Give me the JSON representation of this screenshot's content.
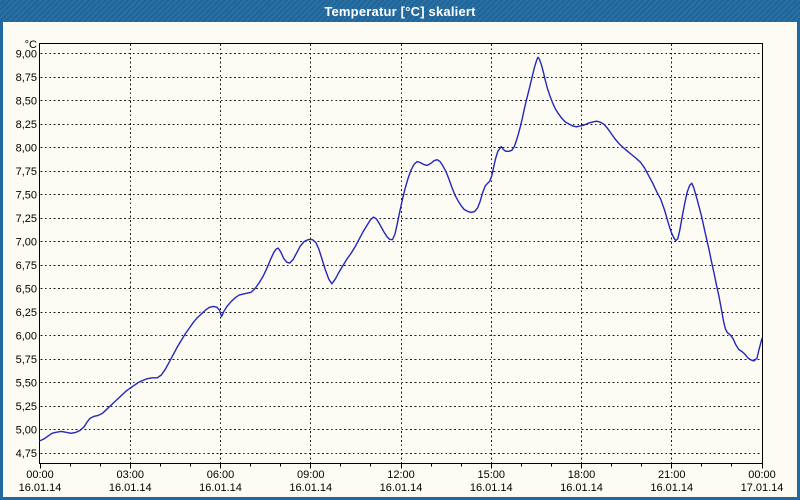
{
  "window": {
    "title": "Temperatur [°C] skaliert"
  },
  "colors": {
    "frame_blue": "#20689e",
    "background": "#fcfcf4",
    "plot_border": "#000000",
    "grid": "#1a1a1a",
    "line_blue": "#2527b8",
    "title_text": "#ffffff",
    "axis_text": "#000000"
  },
  "chart_data": {
    "type": "line",
    "title": "Temperatur [°C] skaliert",
    "grid": true,
    "legend": "none",
    "y_axis": {
      "unit": "°C",
      "min": 4.75,
      "max": 9.0,
      "step": 0.25,
      "tick_labels": [
        "9,00",
        "8,75",
        "8,50",
        "8,25",
        "8,00",
        "7,75",
        "7,50",
        "7,25",
        "7,00",
        "6,75",
        "6,50",
        "6,25",
        "6,00",
        "5,75",
        "5,50",
        "5,25",
        "5,00",
        "4,75"
      ]
    },
    "x_axis": {
      "minutes_total": 1440,
      "major_tick_every_minutes": 180,
      "minor_tick_every_minutes": 60,
      "tick_labels": [
        {
          "time": "00:00",
          "date": "16.01.14"
        },
        {
          "time": "03:00",
          "date": "16.01.14"
        },
        {
          "time": "06:00",
          "date": "16.01.14"
        },
        {
          "time": "09:00",
          "date": "16.01.14"
        },
        {
          "time": "12:00",
          "date": "16.01.14"
        },
        {
          "time": "15:00",
          "date": "16.01.14"
        },
        {
          "time": "18:00",
          "date": "16.01.14"
        },
        {
          "time": "21:00",
          "date": "16.01.14"
        },
        {
          "time": "00:00",
          "date": "17.01.14"
        }
      ]
    },
    "series": [
      {
        "name": "Temperatur [°C] skaliert",
        "color": "#2527b8",
        "points": [
          [
            0,
            4.88
          ],
          [
            8,
            4.9
          ],
          [
            16,
            4.93
          ],
          [
            24,
            4.96
          ],
          [
            32,
            4.97
          ],
          [
            42,
            4.98
          ],
          [
            52,
            4.97
          ],
          [
            62,
            4.96
          ],
          [
            72,
            4.97
          ],
          [
            80,
            4.99
          ],
          [
            88,
            5.03
          ],
          [
            94,
            5.08
          ],
          [
            100,
            5.12
          ],
          [
            108,
            5.14
          ],
          [
            116,
            5.15
          ],
          [
            124,
            5.17
          ],
          [
            132,
            5.21
          ],
          [
            140,
            5.25
          ],
          [
            148,
            5.29
          ],
          [
            156,
            5.33
          ],
          [
            164,
            5.37
          ],
          [
            172,
            5.41
          ],
          [
            180,
            5.44
          ],
          [
            188,
            5.47
          ],
          [
            196,
            5.5
          ],
          [
            204,
            5.52
          ],
          [
            214,
            5.54
          ],
          [
            224,
            5.55
          ],
          [
            234,
            5.55
          ],
          [
            242,
            5.58
          ],
          [
            250,
            5.64
          ],
          [
            258,
            5.72
          ],
          [
            266,
            5.8
          ],
          [
            274,
            5.88
          ],
          [
            282,
            5.95
          ],
          [
            290,
            6.02
          ],
          [
            298,
            6.08
          ],
          [
            306,
            6.14
          ],
          [
            314,
            6.19
          ],
          [
            322,
            6.23
          ],
          [
            330,
            6.27
          ],
          [
            338,
            6.3
          ],
          [
            346,
            6.31
          ],
          [
            353,
            6.3
          ],
          [
            358,
            6.27
          ],
          [
            362,
            6.2
          ],
          [
            367,
            6.26
          ],
          [
            373,
            6.31
          ],
          [
            381,
            6.36
          ],
          [
            389,
            6.4
          ],
          [
            397,
            6.43
          ],
          [
            405,
            6.44
          ],
          [
            413,
            6.45
          ],
          [
            421,
            6.46
          ],
          [
            429,
            6.5
          ],
          [
            437,
            6.56
          ],
          [
            445,
            6.63
          ],
          [
            453,
            6.72
          ],
          [
            460,
            6.81
          ],
          [
            466,
            6.88
          ],
          [
            471,
            6.92
          ],
          [
            475,
            6.93
          ],
          [
            480,
            6.89
          ],
          [
            486,
            6.82
          ],
          [
            492,
            6.78
          ],
          [
            498,
            6.77
          ],
          [
            505,
            6.81
          ],
          [
            512,
            6.88
          ],
          [
            519,
            6.95
          ],
          [
            527,
            7.0
          ],
          [
            535,
            7.02
          ],
          [
            543,
            7.02
          ],
          [
            550,
            6.99
          ],
          [
            556,
            6.92
          ],
          [
            562,
            6.82
          ],
          [
            569,
            6.7
          ],
          [
            576,
            6.6
          ],
          [
            582,
            6.55
          ],
          [
            589,
            6.6
          ],
          [
            597,
            6.68
          ],
          [
            605,
            6.75
          ],
          [
            613,
            6.82
          ],
          [
            621,
            6.88
          ],
          [
            629,
            6.95
          ],
          [
            637,
            7.03
          ],
          [
            645,
            7.11
          ],
          [
            652,
            7.17
          ],
          [
            659,
            7.23
          ],
          [
            665,
            7.26
          ],
          [
            671,
            7.24
          ],
          [
            678,
            7.18
          ],
          [
            685,
            7.11
          ],
          [
            692,
            7.05
          ],
          [
            698,
            7.02
          ],
          [
            703,
            7.02
          ],
          [
            708,
            7.08
          ],
          [
            713,
            7.2
          ],
          [
            718,
            7.33
          ],
          [
            723,
            7.45
          ],
          [
            728,
            7.56
          ],
          [
            734,
            7.67
          ],
          [
            740,
            7.76
          ],
          [
            746,
            7.82
          ],
          [
            752,
            7.85
          ],
          [
            758,
            7.84
          ],
          [
            765,
            7.82
          ],
          [
            772,
            7.81
          ],
          [
            779,
            7.83
          ],
          [
            786,
            7.86
          ],
          [
            792,
            7.87
          ],
          [
            798,
            7.85
          ],
          [
            804,
            7.8
          ],
          [
            810,
            7.74
          ],
          [
            816,
            7.66
          ],
          [
            822,
            7.57
          ],
          [
            828,
            7.49
          ],
          [
            834,
            7.43
          ],
          [
            840,
            7.38
          ],
          [
            846,
            7.34
          ],
          [
            853,
            7.32
          ],
          [
            860,
            7.31
          ],
          [
            867,
            7.32
          ],
          [
            873,
            7.36
          ],
          [
            878,
            7.43
          ],
          [
            883,
            7.52
          ],
          [
            888,
            7.59
          ],
          [
            893,
            7.62
          ],
          [
            897,
            7.64
          ],
          [
            901,
            7.7
          ],
          [
            905,
            7.8
          ],
          [
            909,
            7.89
          ],
          [
            913,
            7.96
          ],
          [
            917,
            7.99
          ],
          [
            920,
            8.01
          ],
          [
            924,
            7.98
          ],
          [
            929,
            7.96
          ],
          [
            935,
            7.96
          ],
          [
            941,
            7.97
          ],
          [
            946,
            8.01
          ],
          [
            950,
            8.07
          ],
          [
            954,
            8.14
          ],
          [
            958,
            8.22
          ],
          [
            962,
            8.31
          ],
          [
            966,
            8.41
          ],
          [
            971,
            8.52
          ],
          [
            976,
            8.63
          ],
          [
            981,
            8.74
          ],
          [
            986,
            8.85
          ],
          [
            990,
            8.92
          ],
          [
            993,
            8.96
          ],
          [
            996,
            8.94
          ],
          [
            1000,
            8.88
          ],
          [
            1004,
            8.8
          ],
          [
            1008,
            8.71
          ],
          [
            1012,
            8.63
          ],
          [
            1017,
            8.55
          ],
          [
            1022,
            8.48
          ],
          [
            1028,
            8.41
          ],
          [
            1034,
            8.36
          ],
          [
            1041,
            8.31
          ],
          [
            1048,
            8.27
          ],
          [
            1055,
            8.25
          ],
          [
            1062,
            8.23
          ],
          [
            1070,
            8.22
          ],
          [
            1078,
            8.23
          ],
          [
            1086,
            8.24
          ],
          [
            1094,
            8.26
          ],
          [
            1102,
            8.27
          ],
          [
            1110,
            8.28
          ],
          [
            1117,
            8.27
          ],
          [
            1124,
            8.25
          ],
          [
            1131,
            8.21
          ],
          [
            1139,
            8.15
          ],
          [
            1147,
            8.09
          ],
          [
            1155,
            8.04
          ],
          [
            1163,
            8.0
          ],
          [
            1172,
            7.96
          ],
          [
            1181,
            7.92
          ],
          [
            1190,
            7.88
          ],
          [
            1198,
            7.84
          ],
          [
            1206,
            7.78
          ],
          [
            1214,
            7.7
          ],
          [
            1222,
            7.62
          ],
          [
            1230,
            7.53
          ],
          [
            1238,
            7.45
          ],
          [
            1246,
            7.33
          ],
          [
            1253,
            7.2
          ],
          [
            1259,
            7.1
          ],
          [
            1264,
            7.04
          ],
          [
            1268,
            7.01
          ],
          [
            1272,
            7.03
          ],
          [
            1276,
            7.12
          ],
          [
            1281,
            7.27
          ],
          [
            1286,
            7.41
          ],
          [
            1291,
            7.53
          ],
          [
            1296,
            7.6
          ],
          [
            1300,
            7.62
          ],
          [
            1304,
            7.57
          ],
          [
            1309,
            7.48
          ],
          [
            1314,
            7.38
          ],
          [
            1319,
            7.28
          ],
          [
            1324,
            7.16
          ],
          [
            1329,
            7.04
          ],
          [
            1334,
            6.92
          ],
          [
            1339,
            6.79
          ],
          [
            1344,
            6.67
          ],
          [
            1349,
            6.54
          ],
          [
            1354,
            6.42
          ],
          [
            1359,
            6.28
          ],
          [
            1363,
            6.16
          ],
          [
            1367,
            6.07
          ],
          [
            1371,
            6.03
          ],
          [
            1376,
            6.01
          ],
          [
            1382,
            5.97
          ],
          [
            1388,
            5.9
          ],
          [
            1394,
            5.85
          ],
          [
            1400,
            5.83
          ],
          [
            1406,
            5.8
          ],
          [
            1412,
            5.76
          ],
          [
            1418,
            5.74
          ],
          [
            1424,
            5.73
          ],
          [
            1430,
            5.76
          ],
          [
            1434,
            5.85
          ],
          [
            1438,
            5.93
          ],
          [
            1440,
            5.97
          ]
        ]
      }
    ]
  }
}
